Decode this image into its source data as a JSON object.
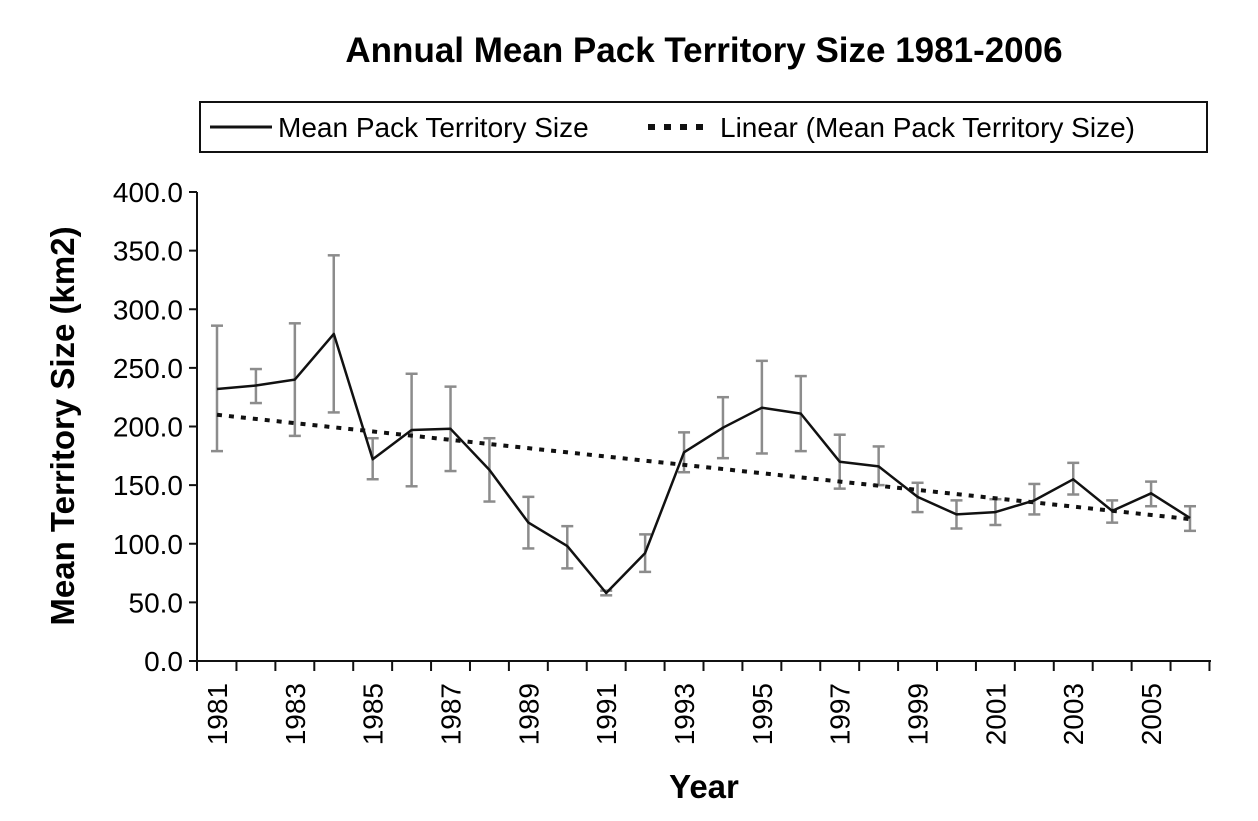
{
  "chart_data": {
    "type": "line",
    "title": "Annual Mean Pack Territory Size 1981-2006",
    "xlabel": "Year",
    "ylabel": "Mean Territory Size (km2)",
    "ylim": [
      0,
      400
    ],
    "xlim": [
      1981,
      2006
    ],
    "yticks": [
      "0.0",
      "50.0",
      "100.0",
      "150.0",
      "200.0",
      "250.0",
      "300.0",
      "350.0",
      "400.0"
    ],
    "xticks": [
      "1981",
      "1983",
      "1985",
      "1987",
      "1989",
      "1991",
      "1993",
      "1995",
      "1997",
      "1999",
      "2001",
      "2003",
      "2005"
    ],
    "legend_position": "top",
    "legend": [
      "Mean Pack Territory Size",
      "Linear (Mean Pack Territory Size)"
    ],
    "grid": false,
    "x": [
      1981,
      1982,
      1983,
      1984,
      1985,
      1986,
      1987,
      1988,
      1989,
      1990,
      1991,
      1992,
      1993,
      1994,
      1995,
      1996,
      1997,
      1998,
      1999,
      2000,
      2001,
      2002,
      2003,
      2004,
      2005,
      2006
    ],
    "series": [
      {
        "name": "Mean Pack Territory Size",
        "style": "solid",
        "color": "#111111",
        "values": [
          232,
          235,
          240,
          279,
          172,
          197,
          198,
          163,
          118,
          98,
          58,
          92,
          178,
          199,
          216,
          211,
          170,
          166,
          140,
          125,
          127,
          137,
          155,
          128,
          143,
          122
        ],
        "error_low": [
          179,
          220,
          192,
          212,
          155,
          149,
          162,
          136,
          96,
          79,
          56,
          76,
          161,
          173,
          177,
          179,
          147,
          150,
          127,
          113,
          116,
          125,
          142,
          118,
          132,
          111
        ],
        "error_high": [
          286,
          249,
          288,
          346,
          190,
          245,
          234,
          190,
          140,
          115,
          60,
          108,
          195,
          225,
          256,
          243,
          193,
          183,
          152,
          137,
          138,
          151,
          169,
          137,
          153,
          132
        ]
      },
      {
        "name": "Linear (Mean Pack Territory Size)",
        "style": "dotted",
        "color": "#111111",
        "values_endpoints": [
          [
            1981,
            210
          ],
          [
            2006,
            121
          ]
        ]
      }
    ],
    "error_bar_color": "#8c8c8c"
  }
}
